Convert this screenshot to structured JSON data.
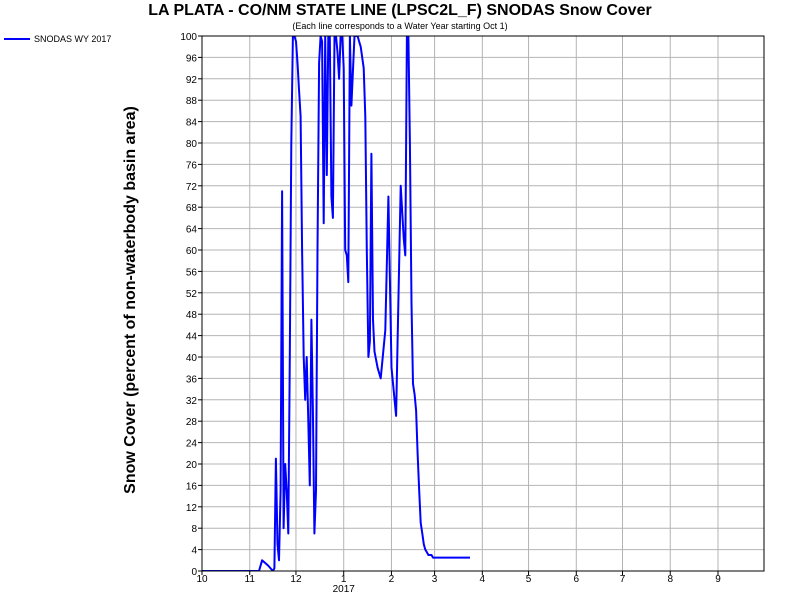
{
  "chart_data": {
    "type": "line",
    "title": "LA PLATA - CO/NM STATE LINE (LPSC2L_F) SNODAS Snow Cover",
    "subtitle": "(Each line corresponds to a Water Year starting Oct 1)",
    "ylabel": "Snow Cover (percent of non-waterbody basin area)",
    "xlabel": "",
    "x_tick_labels": [
      "10",
      "11",
      "12",
      "1",
      "2",
      "3",
      "4",
      "5",
      "6",
      "7",
      "8",
      "9"
    ],
    "x_year_label": "2017",
    "ylim": [
      0,
      100
    ],
    "y_ticks": [
      0,
      4,
      8,
      12,
      16,
      20,
      24,
      28,
      32,
      36,
      40,
      44,
      48,
      52,
      56,
      60,
      64,
      68,
      72,
      76,
      80,
      84,
      88,
      92,
      96,
      100
    ],
    "grid": true,
    "legend_position": "top-left, outside plot",
    "colors": {
      "series": "#0000ff",
      "grid": "#b4b4b4",
      "frame": "#000000"
    },
    "series": [
      {
        "name": "SNODAS WY 2017",
        "x": [
          "2016-10-01",
          "2016-11-01",
          "2016-11-05",
          "2016-11-07",
          "2016-11-09",
          "2016-11-13",
          "2016-11-16",
          "2016-11-17",
          "2016-11-18",
          "2016-11-19",
          "2016-11-20",
          "2016-11-21",
          "2016-11-22",
          "2016-11-23",
          "2016-11-24",
          "2016-11-25",
          "2016-11-26",
          "2016-11-27",
          "2016-11-28",
          "2016-11-29",
          "2016-11-30",
          "2016-12-01",
          "2016-12-02",
          "2016-12-03",
          "2016-12-04",
          "2016-12-05",
          "2016-12-06",
          "2016-12-07",
          "2016-12-08",
          "2016-12-09",
          "2016-12-10",
          "2016-12-11",
          "2016-12-12",
          "2016-12-13",
          "2016-12-14",
          "2016-12-15",
          "2016-12-16",
          "2016-12-17",
          "2016-12-18",
          "2016-12-19",
          "2016-12-20",
          "2016-12-21",
          "2016-12-22",
          "2016-12-23",
          "2016-12-24",
          "2016-12-25",
          "2016-12-26",
          "2016-12-27",
          "2016-12-28",
          "2016-12-29",
          "2016-12-30",
          "2016-12-31",
          "2017-01-01",
          "2017-01-02",
          "2017-01-03",
          "2017-01-04",
          "2017-01-05",
          "2017-01-06",
          "2017-01-08",
          "2017-01-09",
          "2017-01-10",
          "2017-01-11",
          "2017-01-12",
          "2017-01-13",
          "2017-01-14",
          "2017-01-15",
          "2017-01-16",
          "2017-01-17",
          "2017-01-18",
          "2017-01-19",
          "2017-01-20",
          "2017-01-21",
          "2017-01-23",
          "2017-01-25",
          "2017-01-28",
          "2017-01-30",
          "2017-02-01",
          "2017-02-04",
          "2017-02-07",
          "2017-02-09",
          "2017-02-10",
          "2017-02-11",
          "2017-02-12",
          "2017-02-13",
          "2017-02-14",
          "2017-02-15",
          "2017-02-16",
          "2017-02-17",
          "2017-02-18",
          "2017-02-19",
          "2017-02-20",
          "2017-02-21",
          "2017-02-22",
          "2017-02-23",
          "2017-02-24",
          "2017-02-25",
          "2017-02-26",
          "2017-02-27",
          "2017-02-28",
          "2017-03-01",
          "2017-03-02",
          "2017-03-03",
          "2017-03-04",
          "2017-03-05",
          "2017-03-06",
          "2017-03-07",
          "2017-03-08",
          "2017-03-09",
          "2017-03-10",
          "2017-03-12",
          "2017-03-14",
          "2017-03-16",
          "2017-03-18",
          "2017-03-20",
          "2017-03-22",
          "2017-03-24"
        ],
        "values": [
          0,
          0,
          0,
          0,
          2,
          1,
          0,
          0.5,
          21,
          5,
          2,
          15,
          71,
          8,
          20,
          15,
          7,
          40,
          80,
          100,
          100,
          99,
          95,
          90,
          85,
          60,
          40,
          32,
          40,
          28,
          16,
          47,
          30,
          7,
          15,
          60,
          95,
          100,
          99,
          65,
          100,
          74,
          100,
          100,
          70,
          66,
          100,
          100,
          97,
          92,
          100,
          100,
          94,
          60,
          59,
          54,
          100,
          87,
          100,
          100,
          100,
          99,
          98,
          96,
          94,
          85,
          60,
          40,
          43,
          78,
          47,
          41,
          38,
          36,
          45,
          70,
          38,
          29,
          72,
          62,
          59,
          100,
          100,
          80,
          50,
          35,
          33,
          30,
          22,
          15,
          9,
          7,
          5,
          4,
          3.5,
          3,
          3,
          3,
          2.5,
          2.5,
          2.5,
          2.5,
          2.5,
          2.5,
          2.5,
          2.5,
          2.5,
          2.5,
          2.5,
          2.5,
          2.5,
          2.5,
          2.5,
          2.5,
          2.5,
          2.5
        ]
      }
    ]
  }
}
